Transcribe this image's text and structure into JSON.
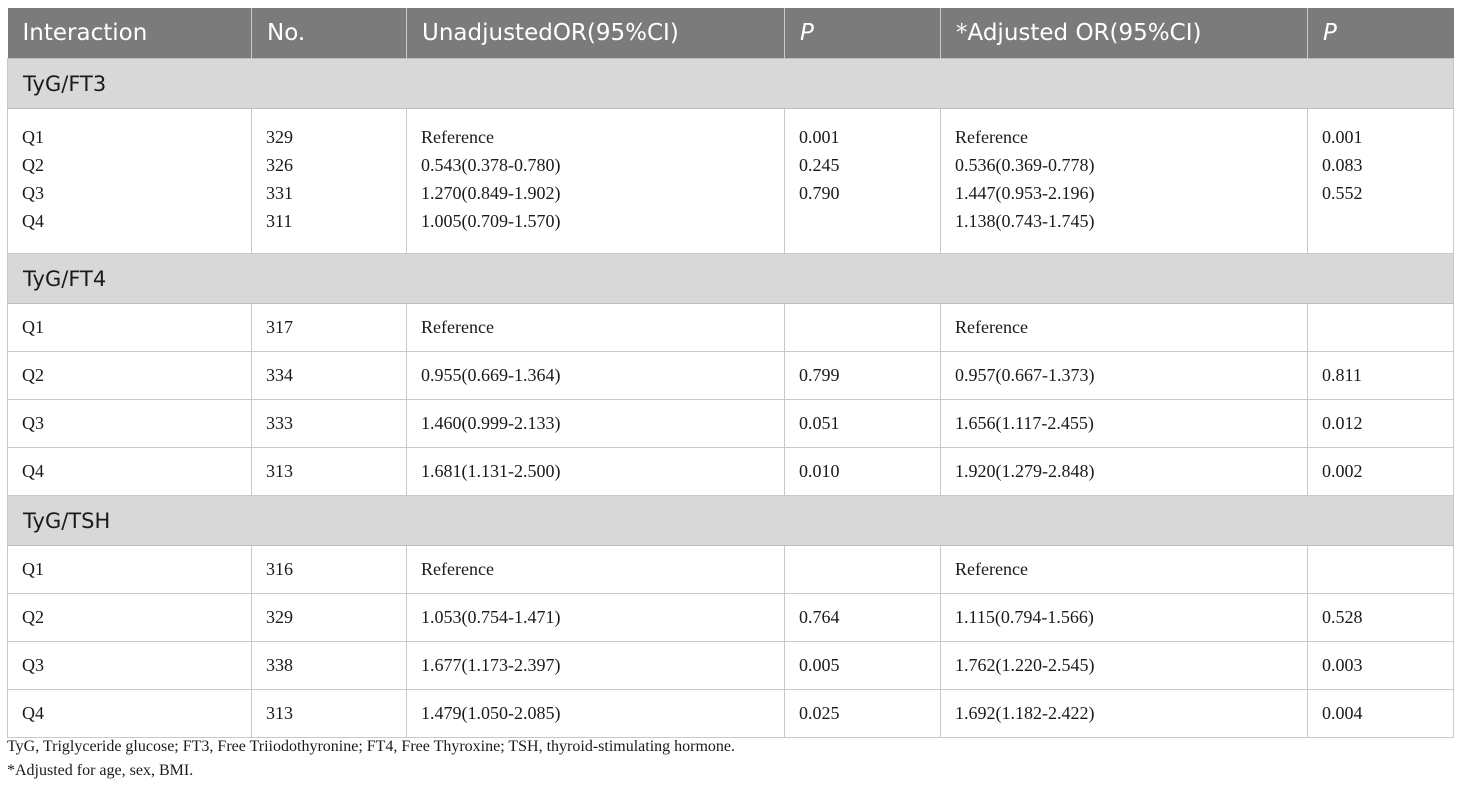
{
  "table": {
    "headers": [
      "Interaction",
      "No.",
      "UnadjustedOR(95%CI)",
      "P",
      "*Adjusted OR(95%CI)",
      "P"
    ],
    "groups": [
      {
        "name": "TyG/FT3",
        "rows": [
          {
            "q": "Q1",
            "n": "329",
            "uor": "Reference",
            "up": "0.001",
            "aor": "Reference",
            "ap": "0.001"
          },
          {
            "q": "Q2",
            "n": "326",
            "uor": "0.543(0.378-0.780)",
            "up": "0.245",
            "aor": "0.536(0.369-0.778)",
            "ap": "0.083"
          },
          {
            "q": "Q3",
            "n": "331",
            "uor": "1.270(0.849-1.902)",
            "up": "0.790",
            "aor": "1.447(0.953-2.196)",
            "ap": "0.552"
          },
          {
            "q": "Q4",
            "n": "311",
            "uor": "1.005(0.709-1.570)",
            "up": "",
            "aor": "1.138(0.743-1.745)",
            "ap": ""
          }
        ]
      },
      {
        "name": "TyG/FT4",
        "rows": [
          {
            "q": "Q1",
            "n": "317",
            "uor": "Reference",
            "up": "",
            "aor": "Reference",
            "ap": ""
          },
          {
            "q": "Q2",
            "n": "334",
            "uor": "0.955(0.669-1.364)",
            "up": "0.799",
            "aor": "0.957(0.667-1.373)",
            "ap": "0.811"
          },
          {
            "q": "Q3",
            "n": "333",
            "uor": "1.460(0.999-2.133)",
            "up": "0.051",
            "aor": "1.656(1.117-2.455)",
            "ap": "0.012"
          },
          {
            "q": "Q4",
            "n": "313",
            "uor": "1.681(1.131-2.500)",
            "up": "0.010",
            "aor": "1.920(1.279-2.848)",
            "ap": "0.002"
          }
        ]
      },
      {
        "name": "TyG/TSH",
        "rows": [
          {
            "q": "Q1",
            "n": "316",
            "uor": "Reference",
            "up": "",
            "aor": "Reference",
            "ap": ""
          },
          {
            "q": "Q2",
            "n": "329",
            "uor": "1.053(0.754-1.471)",
            "up": "0.764",
            "aor": "1.115(0.794-1.566)",
            "ap": "0.528"
          },
          {
            "q": "Q3",
            "n": "338",
            "uor": "1.677(1.173-2.397)",
            "up": "0.005",
            "aor": "1.762(1.220-2.545)",
            "ap": "0.003"
          },
          {
            "q": "Q4",
            "n": "313",
            "uor": "1.479(1.050-2.085)",
            "up": "0.025",
            "aor": "1.692(1.182-2.422)",
            "ap": "0.004"
          }
        ]
      }
    ]
  },
  "footnotes": [
    "TyG, Triglyceride glucose; FT3, Free Triiodothyronine; FT4, Free Thyroxine; TSH, thyroid-stimulating hormone.",
    "*Adjusted for age, sex, BMI."
  ]
}
